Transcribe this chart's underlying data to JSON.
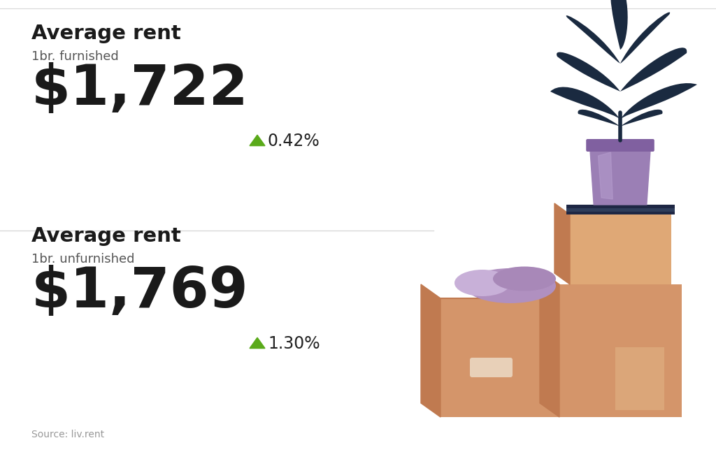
{
  "bg_color": "#ffffff",
  "divider_color": "#d8d8d8",
  "section1_title": "Average rent",
  "section1_subtitle": "1br. furnished",
  "section1_value": "$1,722",
  "section1_change": "0.42%",
  "section2_title": "Average rent",
  "section2_subtitle": "1br. unfurnished",
  "section2_value": "$1,769",
  "section2_change": "1.30%",
  "source_text": "Source: liv.rent",
  "title_fontsize": 21,
  "subtitle_fontsize": 13,
  "value_fontsize": 58,
  "change_fontsize": 17,
  "source_fontsize": 10,
  "title_color": "#1a1a1a",
  "subtitle_color": "#555555",
  "value_color": "#1a1a1a",
  "change_color": "#222222",
  "arrow_color": "#5aaa1a",
  "source_color": "#999999",
  "top_border_color": "#d8d8d8",
  "box_main": "#d4956a",
  "box_dark": "#c07a50",
  "box_light": "#dfa876",
  "box_highlight": "#e8c090",
  "leaf_color": "#1a2a40",
  "pot_color": "#9b7fb5",
  "pot_dark": "#8060a0",
  "pot_highlight": "#b89fd0",
  "purple_item": "#b89fc4",
  "book_color": "#1e2744"
}
